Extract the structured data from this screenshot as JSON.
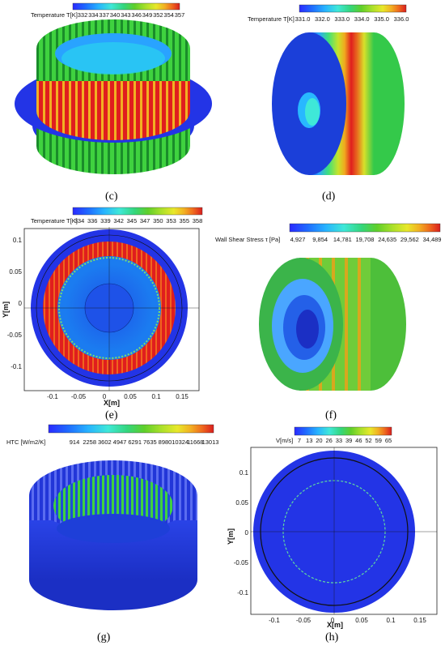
{
  "panels": {
    "c": {
      "caption": "(c)",
      "legend": {
        "title": "Temperature T[K]",
        "ticks": [
          "332",
          "334",
          "337",
          "340",
          "343",
          "346",
          "349",
          "352",
          "354",
          "357"
        ]
      }
    },
    "d": {
      "caption": "(d)",
      "legend": {
        "title": "Temperature T[K]",
        "ticks": [
          "331.0",
          "332.0",
          "333.0",
          "334.0",
          "335.0",
          "336.0"
        ]
      }
    },
    "e": {
      "caption": "(e)",
      "legend": {
        "title": "Temperature T[K]",
        "ticks": [
          "334",
          "336",
          "339",
          "342",
          "345",
          "347",
          "350",
          "353",
          "355",
          "358"
        ]
      },
      "axes": {
        "xlabel": "X[m]",
        "ylabel": "Y[m]",
        "xticks": [
          "-0.1",
          "-0.05",
          "0",
          "0.05",
          "0.1",
          "0.15"
        ],
        "yticks": [
          "0.1",
          "0.05",
          "0",
          "-0.05",
          "-0.1"
        ]
      }
    },
    "f": {
      "caption": "(f)",
      "legend": {
        "title": "Wall Shear Stress τ [Pa]",
        "ticks": [
          "4,927",
          "9,854",
          "14,781",
          "19,708",
          "24,635",
          "29,562",
          "34,489"
        ]
      }
    },
    "g": {
      "caption": "(g)",
      "legend": {
        "title": "HTC [W/m2/K]",
        "ticks": [
          "914",
          "2258",
          "3602",
          "4947",
          "6291",
          "7635",
          "8980",
          "10324",
          "11668",
          "13013"
        ]
      }
    },
    "h": {
      "caption": "(h)",
      "legend": {
        "title": "V[m/s]",
        "ticks": [
          "7",
          "13",
          "20",
          "26",
          "33",
          "39",
          "46",
          "52",
          "59",
          "65"
        ]
      },
      "axes": {
        "xlabel": "X[m]",
        "ylabel": "Y[m]",
        "xticks": [
          "-0.1",
          "-0.05",
          "0",
          "0.05",
          "0.1",
          "0.15"
        ],
        "yticks": [
          "0.1",
          "0.05",
          "0",
          "-0.05",
          "-0.1"
        ]
      }
    }
  },
  "colors": {
    "scale": [
      "#2a2aff",
      "#1f6cff",
      "#27b3ff",
      "#3fe8d8",
      "#34d67a",
      "#5fcf2a",
      "#a8e02a",
      "#e8e82a",
      "#f2b022",
      "#ef6a1e",
      "#d91e1e",
      "#c11616"
    ],
    "deep_blue": "#2334e6",
    "cyan": "#3ac2ff",
    "green": "#3fd23f",
    "red": "#e01e1e"
  }
}
